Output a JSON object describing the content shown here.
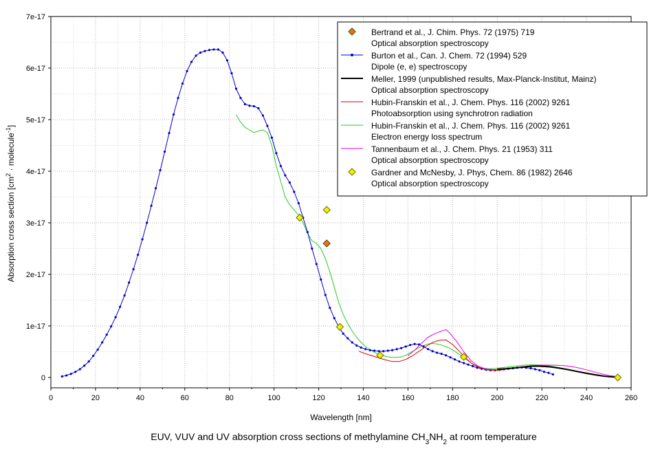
{
  "chart_data": {
    "type": "line",
    "caption": {
      "pre": "EUV, VUV and UV absorption cross sections of methylamine CH",
      "sub1": "3",
      "mid": "NH",
      "sub2": "2",
      "post": " at room temperature"
    },
    "xlabel": "Wavelength [nm]",
    "ylabel": {
      "pre": "Absorption cross section [cm",
      "sup1": "2",
      "mid": " · molecule",
      "sup2": "-1",
      "post": "]"
    },
    "xlim": [
      0,
      260
    ],
    "ylim": [
      -2e-18,
      7e-17
    ],
    "xticks": [
      {
        "v": 0,
        "label": "0"
      },
      {
        "v": 20,
        "label": "20"
      },
      {
        "v": 40,
        "label": "40"
      },
      {
        "v": 60,
        "label": "60"
      },
      {
        "v": 80,
        "label": "80"
      },
      {
        "v": 100,
        "label": "100"
      },
      {
        "v": 120,
        "label": "120"
      },
      {
        "v": 140,
        "label": "140"
      },
      {
        "v": 160,
        "label": "160"
      },
      {
        "v": 180,
        "label": "180"
      },
      {
        "v": 200,
        "label": "200"
      },
      {
        "v": 220,
        "label": "220"
      },
      {
        "v": 240,
        "label": "240"
      },
      {
        "v": 260,
        "label": "260"
      }
    ],
    "yticks": [
      {
        "v": 0,
        "label": "0"
      },
      {
        "v": 1e-17,
        "label": "1e-17"
      },
      {
        "v": 2e-17,
        "label": "2e-17"
      },
      {
        "v": 3e-17,
        "label": "3e-17"
      },
      {
        "v": 4e-17,
        "label": "4e-17"
      },
      {
        "v": 5e-17,
        "label": "5e-17"
      },
      {
        "v": 6e-17,
        "label": "6e-17"
      },
      {
        "v": 7e-17,
        "label": "7e-17"
      }
    ],
    "grid": true,
    "legend_position": "top-right",
    "series": [
      {
        "id": "bertrand",
        "kind": "marker",
        "color": "#e07a1c",
        "stroke": "#6b3300",
        "line1": "Bertrand et al., J. Chim. Phys. 72 (1975) 719",
        "line2": "Optical absorption spectroscopy",
        "x": [
          123.6
        ],
        "y": [
          2.6e-17
        ]
      },
      {
        "id": "burton",
        "kind": "line-dots",
        "color": "#0000c8",
        "line1": "Burton et al., Can. J. Chem. 72 (1994) 529",
        "line2": "Dipole (e, e) spectroscopy",
        "x": [
          5,
          7,
          9,
          11,
          13,
          15,
          17,
          19,
          21,
          23,
          25,
          27,
          29,
          31,
          33,
          35,
          37,
          39,
          41,
          43,
          45,
          47,
          49,
          51,
          53,
          55,
          57,
          59,
          61,
          63,
          65,
          67,
          69,
          71,
          73,
          75,
          77,
          79,
          81,
          83,
          85,
          87,
          89,
          91,
          93,
          95,
          97,
          99,
          101,
          103,
          105,
          107,
          109,
          111,
          113,
          115,
          117,
          119,
          121,
          123,
          125,
          127,
          129,
          131,
          133,
          135,
          137,
          139,
          141,
          143,
          145,
          147,
          149,
          151,
          153,
          155,
          157,
          159,
          161,
          163,
          165,
          167,
          169,
          171,
          173,
          175,
          177,
          179,
          181,
          183,
          185,
          187,
          189,
          191,
          193,
          195,
          197,
          199,
          201,
          203,
          205,
          207,
          209,
          211,
          213,
          215,
          217,
          219,
          221,
          223,
          225
        ],
        "y": [
          2e-19,
          4e-19,
          7e-19,
          1.1e-18,
          1.6e-18,
          2.3e-18,
          3.1e-18,
          4.2e-18,
          5.4e-18,
          6.8e-18,
          8.3e-18,
          9.9e-18,
          1.17e-17,
          1.37e-17,
          1.59e-17,
          1.84e-17,
          2.1e-17,
          2.38e-17,
          2.68e-17,
          3e-17,
          3.33e-17,
          3.67e-17,
          4.02e-17,
          4.38e-17,
          4.74e-17,
          5.1e-17,
          5.42e-17,
          5.7e-17,
          5.94e-17,
          6.12e-17,
          6.24e-17,
          6.3e-17,
          6.33e-17,
          6.35e-17,
          6.36e-17,
          6.36e-17,
          6.3e-17,
          6.15e-17,
          5.9e-17,
          5.6e-17,
          5.42e-17,
          5.3e-17,
          5.27e-17,
          5.26e-17,
          5.22e-17,
          5.08e-17,
          4.88e-17,
          4.65e-17,
          4.35e-17,
          4.1e-17,
          3.92e-17,
          3.78e-17,
          3.6e-17,
          3.38e-17,
          3.1e-17,
          2.82e-17,
          2.5e-17,
          2.2e-17,
          1.9e-17,
          1.6e-17,
          1.35e-17,
          1.15e-17,
          9.8e-18,
          8.5e-18,
          7.6e-18,
          6.8e-18,
          6.2e-18,
          5.8e-18,
          5.5e-18,
          5.3e-18,
          5.2e-18,
          5.1e-18,
          5.1e-18,
          5.2e-18,
          5.3e-18,
          5.5e-18,
          5.7e-18,
          6e-18,
          6.3e-18,
          6.5e-18,
          6.4e-18,
          6e-18,
          5.5e-18,
          5.1e-18,
          4.8e-18,
          4.6e-18,
          4.3e-18,
          3.9e-18,
          3.5e-18,
          3.1e-18,
          2.8e-18,
          2.5e-18,
          2.2e-18,
          1.9e-18,
          1.7e-18,
          1.5e-18,
          1.4e-18,
          1.4e-18,
          1.5e-18,
          1.6e-18,
          1.7e-18,
          1.8e-18,
          1.9e-18,
          1.95e-18,
          1.9e-18,
          1.8e-18,
          1.6e-18,
          1.4e-18,
          1.1e-18,
          9e-19,
          6e-19
        ]
      },
      {
        "id": "meller",
        "kind": "line",
        "color": "#000000",
        "line1": "Meller, 1999 (unpublished results, Max-Planck-Institut, Mainz)",
        "line2": "Optical absorption spectroscopy",
        "x": [
          200,
          204,
          208,
          212,
          216,
          220,
          224,
          228,
          232,
          236,
          240,
          244,
          248,
          252,
          255
        ],
        "y": [
          1.6e-18,
          1.7e-18,
          1.85e-18,
          2.05e-18,
          2.2e-18,
          2.2e-18,
          2.05e-18,
          1.8e-18,
          1.5e-18,
          1.15e-18,
          8e-19,
          5e-19,
          2.5e-19,
          1e-19,
          5e-20
        ]
      },
      {
        "id": "hubin-photo",
        "kind": "line",
        "color": "#d10000",
        "line1": "Hubin-Franskin et al., J. Chem. Phys. 116 (2002) 9261",
        "line2": "Photoabsorption using synchrotron radiation",
        "x": [
          138,
          141,
          144,
          147,
          150,
          153,
          156,
          159,
          162,
          165,
          168,
          171,
          174,
          177,
          180,
          183,
          186,
          189,
          192,
          195,
          198,
          201,
          204,
          208,
          212,
          216,
          220,
          224,
          228,
          232,
          236,
          240,
          244,
          248,
          252,
          255
        ],
        "y": [
          5.1e-18,
          4.6e-18,
          4.2e-18,
          3.8e-18,
          3.4e-18,
          3.1e-18,
          3.1e-18,
          3.5e-18,
          4.2e-18,
          5.1e-18,
          6e-18,
          6.8e-18,
          7.2e-18,
          7.3e-18,
          6.4e-18,
          5.1e-18,
          3.7e-18,
          2.6e-18,
          1.9e-18,
          1.5e-18,
          1.4e-18,
          1.4e-18,
          1.6e-18,
          1.9e-18,
          2.1e-18,
          2.2e-18,
          2.1e-18,
          2e-18,
          1.8e-18,
          1.5e-18,
          1.2e-18,
          9e-19,
          6e-19,
          3e-19,
          1e-19,
          5e-20
        ]
      },
      {
        "id": "hubin-eels",
        "kind": "line",
        "color": "#22cc22",
        "line1": "Hubin-Franskin et al., J. Chem. Phys. 116 (2002) 9261",
        "line2": "Electron energy loss spectrum",
        "x": [
          83,
          85,
          87,
          89,
          91,
          93,
          95,
          97,
          99,
          101,
          103,
          105,
          107,
          109,
          111,
          113,
          115,
          117,
          119,
          121,
          123,
          125,
          127,
          129,
          131,
          133,
          135,
          137,
          139,
          141,
          143,
          145,
          147,
          149,
          151,
          153,
          155,
          157,
          159,
          161,
          163,
          165,
          167,
          169,
          171,
          173,
          175,
          177,
          179,
          181,
          183,
          185,
          187,
          189,
          191,
          193,
          195,
          197,
          199,
          201,
          204,
          208,
          212,
          216,
          220,
          224,
          228,
          232,
          236,
          240,
          244,
          248,
          252
        ],
        "y": [
          5.1e-17,
          4.95e-17,
          4.85e-17,
          4.8e-17,
          4.75e-17,
          4.78e-17,
          4.8e-17,
          4.75e-17,
          4.5e-17,
          4.1e-17,
          3.8e-17,
          3.5e-17,
          3.35e-17,
          3.25e-17,
          3.15e-17,
          3e-17,
          2.8e-17,
          2.65e-17,
          2.6e-17,
          2.5e-17,
          2.3e-17,
          2.05e-17,
          1.75e-17,
          1.45e-17,
          1.22e-17,
          1.05e-17,
          9e-18,
          7.8e-18,
          6.8e-18,
          6e-18,
          5.4e-18,
          4.9e-18,
          4.5e-18,
          4.2e-18,
          4e-18,
          3.9e-18,
          3.9e-18,
          4e-18,
          4.3e-18,
          4.8e-18,
          5.3e-18,
          5.8e-18,
          6.2e-18,
          6.5e-18,
          6.6e-18,
          6.5e-18,
          6.3e-18,
          6e-18,
          5.6e-18,
          5.1e-18,
          4.5e-18,
          3.9e-18,
          3.2e-18,
          2.6e-18,
          2.2e-18,
          1.9e-18,
          1.75e-18,
          1.7e-18,
          1.75e-18,
          1.85e-18,
          2e-18,
          2.2e-18,
          2.4e-18,
          2.45e-18,
          2.4e-18,
          2.2e-18,
          1.9e-18,
          1.6e-18,
          1.2e-18,
          8e-19,
          5e-19,
          2e-19,
          1e-19
        ]
      },
      {
        "id": "tannenbaum",
        "kind": "line",
        "color": "#e000e0",
        "line1": "Tannenbaum et al., J. Chem. Phys. 21 (1953) 311",
        "line2": "Optical absorption spectroscopy",
        "x": [
          160,
          163,
          166,
          169,
          172,
          175,
          177,
          179,
          182,
          185,
          188,
          191,
          195,
          200,
          205,
          210,
          215,
          220,
          225,
          230,
          235,
          240,
          245,
          250,
          255
        ],
        "y": [
          4.2e-18,
          5.3e-18,
          6.6e-18,
          7.8e-18,
          8.5e-18,
          9e-18,
          9.3e-18,
          8.5e-18,
          6.9e-18,
          5e-18,
          3.4e-18,
          2.3e-18,
          1.6e-18,
          1.5e-18,
          1.7e-18,
          2e-18,
          2.3e-18,
          2.4e-18,
          2.4e-18,
          2.3e-18,
          2e-18,
          1.5e-18,
          9e-19,
          4e-19,
          1e-19
        ]
      },
      {
        "id": "gardner",
        "kind": "marker",
        "color": "#f2f200",
        "stroke": "#6b6b00",
        "line1": "Gardner and McNesby, J. Phys, Chem. 86 (1982) 2646",
        "line2": "Optical absorption spectroscopy",
        "x": [
          111.5,
          123.6,
          129.5,
          147.5,
          185,
          254
        ],
        "y": [
          3.1e-17,
          3.25e-17,
          9.8e-18,
          4.3e-18,
          4e-18,
          0
        ]
      }
    ]
  }
}
